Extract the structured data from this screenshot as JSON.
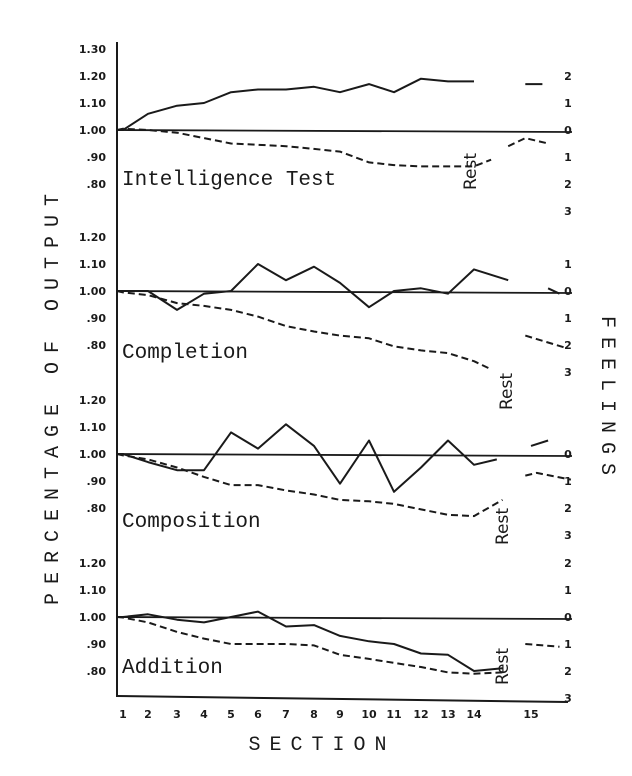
{
  "chart_data": {
    "type": "line",
    "xlabel": "SECTION",
    "ylabel": "PERCENTAGE OF OUTPUT",
    "ylabel_right": "FEELINGS",
    "x_ticks": [
      "1",
      "2",
      "3",
      "4",
      "5",
      "6",
      "7",
      "8",
      "9",
      "10",
      "11",
      "12",
      "13",
      "14",
      "15"
    ],
    "rest_label": "Rest",
    "line_styles": {
      "output": "solid",
      "feelings": "dashed"
    },
    "colors": {
      "ink": "#1a1a1a",
      "background": "#ffffff"
    },
    "grid": false,
    "panels": [
      {
        "title": "Intelligence Test",
        "y_ticks": [
          "1.30",
          "1.20",
          "1.10",
          "1.00",
          ".90",
          ".80"
        ],
        "y_tick_values": [
          1.3,
          1.2,
          1.1,
          1.0,
          0.9,
          0.8
        ],
        "feelings_ticks": [
          "2",
          "1",
          "0",
          "1",
          "2",
          "3"
        ],
        "feelings_tick_values": [
          2,
          1,
          0,
          -1,
          -2,
          -3
        ],
        "output": {
          "x": [
            0,
            1,
            2,
            3,
            4,
            5,
            6,
            7,
            8,
            9,
            10,
            11,
            12,
            13,
            14
          ],
          "y": [
            1.0,
            1.0,
            1.06,
            1.09,
            1.1,
            1.14,
            1.15,
            1.15,
            1.16,
            1.14,
            1.17,
            1.14,
            1.19,
            1.18,
            1.18
          ]
        },
        "output_after_rest": {
          "x": [
            14.9,
            15.2
          ],
          "y": [
            1.17,
            1.17
          ]
        },
        "feelings": {
          "x": [
            0,
            1,
            2,
            3,
            4,
            5,
            6,
            7,
            8,
            9,
            10,
            11,
            12,
            13,
            14,
            14.3
          ],
          "y": [
            0,
            0.05,
            0,
            -0.1,
            -0.3,
            -0.5,
            -0.55,
            -0.6,
            -0.7,
            -0.8,
            -1.2,
            -1.3,
            -1.35,
            -1.35,
            -1.35,
            -1.1
          ]
        },
        "feelings_after_rest": {
          "x": [
            14.6,
            14.9,
            15.3
          ],
          "y": [
            -0.6,
            -0.3,
            -0.5
          ]
        }
      },
      {
        "title": "Completion",
        "y_ticks": [
          "1.20",
          "1.10",
          "1.00",
          ".90",
          ".80"
        ],
        "y_tick_values": [
          1.2,
          1.1,
          1.0,
          0.9,
          0.8
        ],
        "feelings_ticks": [
          "1",
          "0",
          "1",
          "2",
          "3"
        ],
        "feelings_tick_values": [
          1,
          0,
          -1,
          -2,
          -3
        ],
        "output": {
          "x": [
            0,
            1,
            2,
            3,
            4,
            5,
            6,
            7,
            8,
            9,
            10,
            11,
            12,
            13,
            14,
            14.6
          ],
          "y": [
            1.0,
            1.0,
            1.0,
            0.93,
            0.99,
            1.0,
            1.1,
            1.04,
            1.09,
            1.03,
            0.94,
            1.0,
            1.01,
            0.99,
            1.08,
            1.04
          ]
        },
        "output_after_rest": {
          "x": [
            15.3,
            15.5
          ],
          "y": [
            1.01,
            0.99
          ]
        },
        "feelings": {
          "x": [
            0,
            1,
            2,
            3,
            4,
            5,
            6,
            7,
            8,
            9,
            10,
            11,
            12,
            13,
            14,
            14.3
          ],
          "y": [
            0,
            -0.05,
            -0.15,
            -0.45,
            -0.55,
            -0.7,
            -0.95,
            -1.3,
            -1.5,
            -1.65,
            -1.75,
            -2.05,
            -2.2,
            -2.3,
            -2.6,
            -2.9
          ]
        },
        "feelings_after_rest": {
          "x": [
            14.9,
            15.6
          ],
          "y": [
            -1.65,
            -2.1
          ]
        }
      },
      {
        "title": "Composition",
        "y_ticks": [
          "1.20",
          "1.10",
          "1.00",
          ".90",
          ".80"
        ],
        "y_tick_values": [
          1.2,
          1.1,
          1.0,
          0.9,
          0.8
        ],
        "feelings_ticks": [
          "0",
          "1",
          "2",
          "3"
        ],
        "feelings_tick_values": [
          0,
          -1,
          -2,
          -3
        ],
        "output": {
          "x": [
            0,
            1,
            2,
            3,
            4,
            5,
            6,
            7,
            8,
            9,
            10,
            11,
            12,
            13,
            14,
            14.4
          ],
          "y": [
            1.0,
            1.0,
            0.97,
            0.94,
            0.94,
            1.08,
            1.02,
            1.11,
            1.03,
            0.89,
            1.05,
            0.86,
            0.95,
            1.05,
            0.96,
            0.98
          ]
        },
        "output_after_rest": {
          "x": [
            15.0,
            15.3
          ],
          "y": [
            1.03,
            1.05
          ]
        },
        "feelings": {
          "x": [
            0,
            1,
            2,
            3,
            4,
            5,
            6,
            7,
            8,
            9,
            10,
            11,
            12,
            13,
            14,
            14.5
          ],
          "y": [
            0,
            -0.05,
            -0.2,
            -0.5,
            -0.85,
            -1.15,
            -1.15,
            -1.35,
            -1.5,
            -1.7,
            -1.75,
            -1.85,
            -2.05,
            -2.25,
            -2.3,
            -1.7
          ]
        },
        "feelings_after_rest": {
          "x": [
            14.9,
            15.1,
            15.7
          ],
          "y": [
            -0.8,
            -0.7,
            -0.95
          ]
        }
      },
      {
        "title": "Addition",
        "y_ticks": [
          "1.20",
          "1.10",
          "1.00",
          ".90",
          ".80"
        ],
        "y_tick_values": [
          1.2,
          1.1,
          1.0,
          0.9,
          0.8
        ],
        "feelings_ticks": [
          "2",
          "1",
          "0",
          "1",
          "2",
          "3"
        ],
        "feelings_tick_values": [
          2,
          1,
          0,
          -1,
          -2,
          -3
        ],
        "output": {
          "x": [
            0,
            1,
            2,
            3,
            4,
            5,
            6,
            7,
            8,
            9,
            10,
            11,
            12,
            13,
            14,
            14.5
          ],
          "y": [
            1.0,
            1.0,
            1.01,
            0.99,
            0.98,
            1.0,
            1.02,
            0.965,
            0.97,
            0.93,
            0.91,
            0.9,
            0.865,
            0.86,
            0.8,
            0.81
          ]
        },
        "output_after_rest": null,
        "feelings": {
          "x": [
            0,
            1,
            2,
            3,
            4,
            5,
            6,
            7,
            8,
            9,
            10,
            11,
            12,
            13,
            14,
            14.5
          ],
          "y": [
            0,
            -0.02,
            -0.2,
            -0.55,
            -0.8,
            -1.0,
            -1.0,
            -1.0,
            -1.05,
            -1.4,
            -1.55,
            -1.7,
            -1.85,
            -2.05,
            -2.1,
            -2.05
          ]
        },
        "feelings_after_rest": {
          "x": [
            14.9,
            15.5
          ],
          "y": [
            -1.0,
            -1.1
          ]
        }
      }
    ]
  }
}
